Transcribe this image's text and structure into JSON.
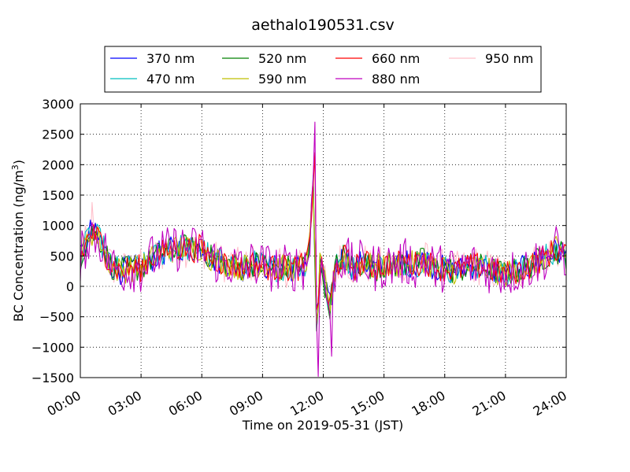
{
  "chart_data": {
    "type": "line",
    "title": "aethalo190531.csv",
    "xlabel": "Time on 2019-05-31 (JST)",
    "ylabel_main": "BC Concentration (ng/m",
    "ylabel_sup": "3",
    "ylabel_close": ")",
    "xlim_hours": [
      0,
      24
    ],
    "ylim": [
      -1500,
      3000
    ],
    "x_ticks": [
      "00:00",
      "03:00",
      "06:00",
      "09:00",
      "12:00",
      "15:00",
      "18:00",
      "21:00",
      "24:00"
    ],
    "y_ticks": [
      "3000",
      "2500",
      "2000",
      "1500",
      "1000",
      "500",
      "0",
      "−500",
      "−1000",
      "−1500"
    ],
    "y_tick_values": [
      3000,
      2500,
      2000,
      1500,
      1000,
      500,
      0,
      -500,
      -1000,
      -1500
    ],
    "grid": true,
    "legend_position": "top",
    "series": [
      {
        "name": "370 nm",
        "color": "#0000ff"
      },
      {
        "name": "470 nm",
        "color": "#00bfbf"
      },
      {
        "name": "520 nm",
        "color": "#008000"
      },
      {
        "name": "590 nm",
        "color": "#bfbf00"
      },
      {
        "name": "660 nm",
        "color": "#ff0000"
      },
      {
        "name": "880 nm",
        "color": "#bf00bf"
      },
      {
        "name": "950 nm",
        "color": "#ffc0cb"
      }
    ],
    "profile_hours": [
      0,
      0.5,
      1.0,
      1.5,
      2.0,
      2.5,
      3.0,
      3.5,
      4.0,
      4.5,
      5.0,
      5.5,
      6.0,
      6.5,
      7.0,
      7.5,
      8.0,
      8.5,
      9.0,
      9.5,
      10.0,
      10.5,
      11.0,
      11.3,
      11.5,
      11.6,
      11.7,
      11.8,
      12.0,
      12.3,
      12.6,
      13.0,
      13.5,
      14.0,
      14.5,
      15.0,
      15.5,
      16.0,
      16.5,
      17.0,
      17.5,
      18.0,
      18.5,
      19.0,
      19.5,
      20.0,
      20.5,
      21.0,
      21.5,
      22.0,
      22.5,
      23.0,
      23.5,
      24.0
    ],
    "profile_values": [
      450,
      900,
      750,
      350,
      250,
      300,
      300,
      450,
      550,
      600,
      650,
      600,
      650,
      450,
      400,
      350,
      300,
      380,
      350,
      300,
      300,
      300,
      330,
      500,
      1800,
      200,
      -900,
      350,
      200,
      -400,
      300,
      500,
      300,
      400,
      300,
      350,
      350,
      400,
      350,
      450,
      300,
      300,
      250,
      300,
      350,
      300,
      250,
      200,
      250,
      300,
      400,
      500,
      600,
      500
    ],
    "noise_amplitude_ng_m3": 250,
    "notable_peaks": [
      {
        "series": "880 nm",
        "x_hours": 11.6,
        "y": 2700
      },
      {
        "series": "880 nm",
        "x_hours": 11.75,
        "y": -1480
      },
      {
        "series": "660 nm",
        "x_hours": 11.6,
        "y": 2200
      },
      {
        "series": "880 nm",
        "x_hours": 12.4,
        "y": -1150
      },
      {
        "series": "950 nm",
        "x_hours": 0.6,
        "y": 1380
      }
    ]
  }
}
